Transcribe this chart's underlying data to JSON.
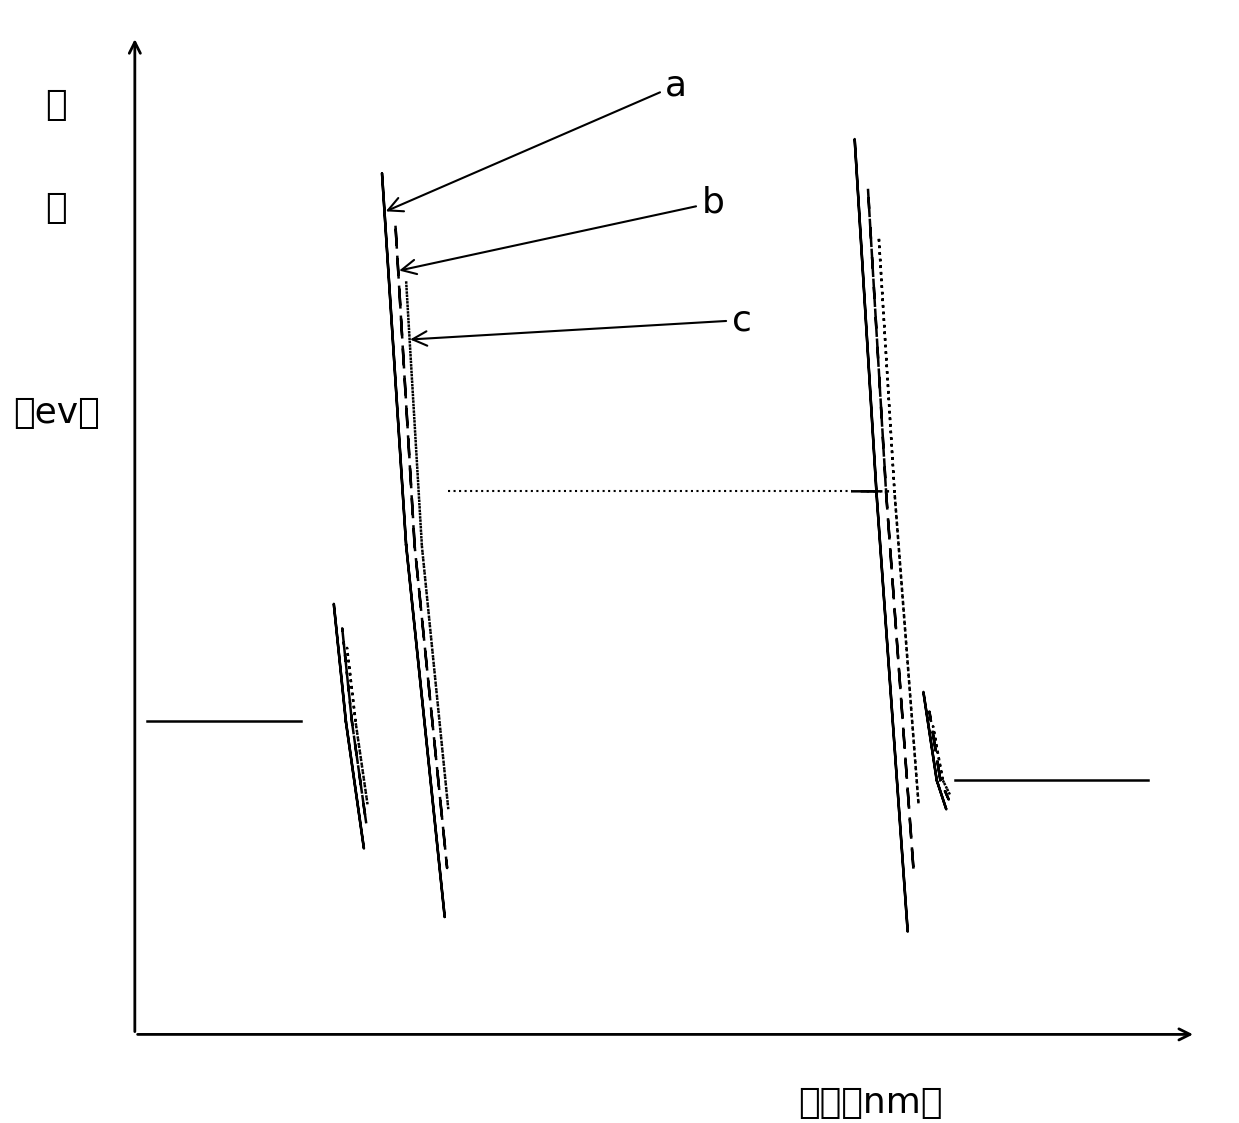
{
  "ylabel_lines": [
    "能",
    "带",
    "",
    "（ev）"
  ],
  "xlabel": "厚度（nm）",
  "background_color": "#ffffff",
  "line_color": "#000000",
  "annotation_a": "a",
  "annotation_b": "b",
  "annotation_c": "c",
  "figsize": [
    12.39,
    11.23
  ],
  "dpi": 100,
  "xlim": [
    0,
    10
  ],
  "ylim": [
    -5.5,
    5.5
  ],
  "left_flat_y": -1.8,
  "right_flat_y": -2.4,
  "mid_level_y": 0.5,
  "lw_main": 1.8,
  "lw_axis": 2.0
}
